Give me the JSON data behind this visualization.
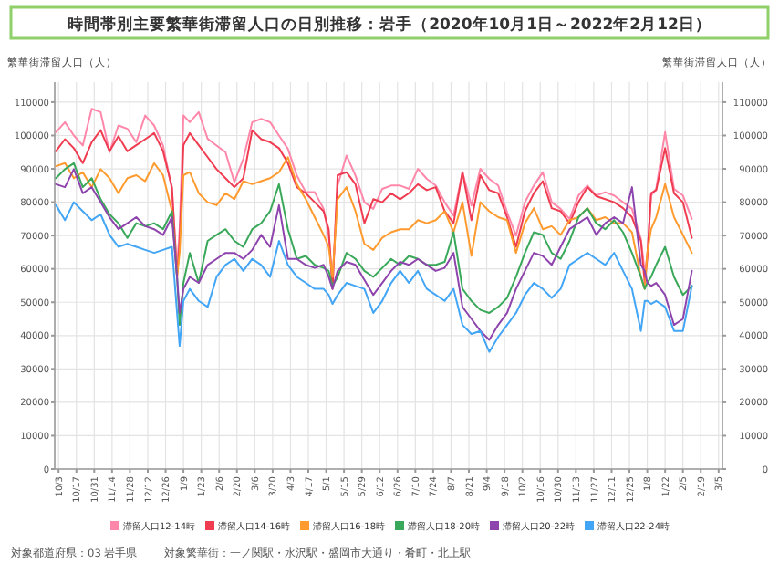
{
  "chart_data": {
    "type": "line",
    "title": "時間帯別主要繁華街滞留人口の日別推移：岩手（2020年10月1日～2022年2月12日）",
    "ylabel": "繁華街滞留人口（人）",
    "y2label": "繁華街滞留人口（人）",
    "x": [
      "2020-10-01",
      "2020-10-08",
      "2020-10-15",
      "2020-10-22",
      "2020-10-29",
      "2020-11-05",
      "2020-11-12",
      "2020-11-19",
      "2020-11-26",
      "2020-12-03",
      "2020-12-10",
      "2020-12-17",
      "2020-12-24",
      "2020-12-31",
      "2021-01-04",
      "2021-01-06",
      "2021-01-09",
      "2021-01-14",
      "2021-01-21",
      "2021-01-28",
      "2021-02-04",
      "2021-02-11",
      "2021-02-18",
      "2021-02-25",
      "2021-03-04",
      "2021-03-11",
      "2021-03-18",
      "2021-03-25",
      "2021-04-01",
      "2021-04-08",
      "2021-04-15",
      "2021-04-22",
      "2021-04-29",
      "2021-05-03",
      "2021-05-06",
      "2021-05-10",
      "2021-05-17",
      "2021-05-24",
      "2021-05-31",
      "2021-06-07",
      "2021-06-14",
      "2021-06-21",
      "2021-06-28",
      "2021-07-05",
      "2021-07-12",
      "2021-07-19",
      "2021-07-26",
      "2021-08-02",
      "2021-08-09",
      "2021-08-16",
      "2021-08-23",
      "2021-08-30",
      "2021-09-06",
      "2021-09-13",
      "2021-09-20",
      "2021-09-27",
      "2021-10-04",
      "2021-10-11",
      "2021-10-18",
      "2021-10-25",
      "2021-11-01",
      "2021-11-08",
      "2021-11-15",
      "2021-11-22",
      "2021-11-29",
      "2021-12-06",
      "2021-12-13",
      "2021-12-20",
      "2021-12-27",
      "2022-01-03",
      "2022-01-06",
      "2022-01-08",
      "2022-01-11",
      "2022-01-15",
      "2022-01-22",
      "2022-01-29",
      "2022-02-05",
      "2022-02-12"
    ],
    "series": [
      {
        "name": "滞留人口12-14時",
        "color": "#ff88aa",
        "values": [
          101000,
          104000,
          100000,
          97000,
          108000,
          107000,
          95000,
          103000,
          102000,
          98000,
          106000,
          103000,
          97000,
          84000,
          60000,
          72000,
          106000,
          104000,
          107000,
          99000,
          97000,
          95000,
          86000,
          93000,
          104000,
          105000,
          104000,
          100000,
          96000,
          88000,
          83000,
          83000,
          78000,
          70000,
          55000,
          85000,
          94000,
          88000,
          80000,
          78000,
          84000,
          85000,
          85000,
          84000,
          90000,
          87000,
          85000,
          80000,
          76000,
          89000,
          79000,
          90000,
          87000,
          85000,
          77000,
          70000,
          80000,
          85000,
          89000,
          80000,
          78000,
          75000,
          82000,
          85000,
          82000,
          83000,
          82000,
          80000,
          78000,
          69000,
          59000,
          64000,
          82000,
          84000,
          101000,
          84000,
          82000,
          75000
        ]
      },
      {
        "name": "滞留人口14-16時",
        "color": "#f03c50",
        "values": [
          95300,
          98900,
          96200,
          91700,
          98000,
          101600,
          95300,
          99800,
          95300,
          97100,
          98900,
          100700,
          95300,
          84500,
          57600,
          68400,
          97100,
          100700,
          97100,
          93500,
          89900,
          87200,
          84500,
          87200,
          101600,
          98900,
          98000,
          96200,
          91700,
          84500,
          82700,
          80000,
          77300,
          71900,
          54000,
          88100,
          89000,
          85400,
          73700,
          80900,
          80000,
          82700,
          80900,
          82700,
          85400,
          83600,
          84500,
          77300,
          73700,
          89000,
          74600,
          88100,
          83600,
          82700,
          75500,
          66600,
          77300,
          82700,
          86300,
          78200,
          77300,
          73700,
          80000,
          84500,
          81800,
          80900,
          80000,
          78200,
          75500,
          68400,
          55800,
          63000,
          82700,
          83600,
          96200,
          82700,
          80000,
          69300
        ]
      },
      {
        "name": "滞留人口16-18時",
        "color": "#ff9a2e",
        "values": [
          90800,
          91700,
          87200,
          89000,
          84500,
          89900,
          87200,
          82700,
          87200,
          88100,
          86300,
          91700,
          88100,
          77300,
          57600,
          64800,
          88100,
          89000,
          82700,
          80000,
          79100,
          82700,
          80900,
          86300,
          85400,
          86300,
          87200,
          89000,
          93500,
          85400,
          80900,
          75500,
          70200,
          66600,
          57600,
          80900,
          84500,
          77300,
          67500,
          65700,
          69300,
          71000,
          71900,
          71900,
          74600,
          73700,
          74600,
          77300,
          71000,
          80000,
          63900,
          80000,
          77300,
          75500,
          74600,
          64800,
          73700,
          78200,
          71900,
          72800,
          70200,
          74600,
          75500,
          78200,
          74600,
          75500,
          73700,
          73700,
          71000,
          57600,
          54000,
          64800,
          71900,
          75500,
          85400,
          75500,
          70200,
          64800
        ]
      },
      {
        "name": "滞留人口18-20時",
        "color": "#3aa85a",
        "values": [
          87200,
          89900,
          91700,
          84500,
          87200,
          80900,
          76400,
          73700,
          69300,
          73700,
          72800,
          73700,
          71900,
          77300,
          57600,
          43200,
          55800,
          64800,
          55800,
          68400,
          70200,
          71900,
          68400,
          66600,
          71900,
          73700,
          77300,
          85400,
          71900,
          63000,
          63900,
          61200,
          60300,
          59400,
          54900,
          57600,
          64800,
          63000,
          59400,
          57600,
          60300,
          63000,
          61200,
          63900,
          63000,
          61200,
          61200,
          62100,
          71000,
          54000,
          50400,
          47700,
          46800,
          48600,
          51300,
          57600,
          64800,
          71000,
          70200,
          64800,
          63000,
          68400,
          75500,
          78200,
          73700,
          71900,
          74600,
          71000,
          64800,
          57600,
          54000,
          55800,
          57600,
          61200,
          66600,
          57600,
          52200,
          54900
        ]
      },
      {
        "name": "滞留人口20-22時",
        "color": "#8e44ad",
        "values": [
          85400,
          84500,
          89900,
          82700,
          84500,
          80000,
          75500,
          71900,
          73700,
          75500,
          72800,
          71900,
          70200,
          75500,
          57600,
          46800,
          54000,
          57600,
          55800,
          61200,
          63000,
          64800,
          64800,
          63000,
          65700,
          70200,
          66600,
          79100,
          63000,
          63000,
          61200,
          60300,
          61200,
          57600,
          54000,
          59400,
          62100,
          61200,
          56700,
          52200,
          55800,
          59400,
          62100,
          61200,
          63000,
          61200,
          59400,
          60300,
          64800,
          48600,
          45000,
          41400,
          38700,
          43200,
          46800,
          54000,
          59400,
          64800,
          63900,
          61200,
          66600,
          71900,
          73700,
          75500,
          70200,
          73700,
          75500,
          73700,
          84500,
          61200,
          59400,
          55800,
          54900,
          55800,
          52200,
          43200,
          45000,
          59400
        ]
      },
      {
        "name": "滞留人口22-24時",
        "color": "#42a5f5",
        "values": [
          79100,
          74600,
          80000,
          77300,
          74600,
          76400,
          70200,
          66600,
          67500,
          66600,
          65700,
          64800,
          65700,
          66600,
          46800,
          36900,
          50400,
          54000,
          50400,
          48600,
          57600,
          61200,
          63000,
          59400,
          63000,
          61200,
          57600,
          68400,
          61200,
          57600,
          55800,
          54000,
          54000,
          52200,
          49500,
          52200,
          55800,
          54900,
          54000,
          46800,
          50400,
          55800,
          59400,
          55800,
          59400,
          54000,
          52200,
          50400,
          54000,
          43200,
          40500,
          41400,
          35100,
          39600,
          43200,
          46800,
          52200,
          55800,
          54000,
          51300,
          54000,
          61200,
          63000,
          64800,
          63000,
          61200,
          64800,
          59400,
          54000,
          41400,
          50400,
          50400,
          49500,
          50400,
          48600,
          41400,
          41400,
          54900
        ]
      }
    ],
    "xlim": [
      "2020-09-30",
      "2022-03-08"
    ],
    "xticks": [
      {
        "value": "2020-10-03",
        "label": "10/3"
      },
      {
        "value": "2020-10-17",
        "label": "10/17"
      },
      {
        "value": "2020-10-31",
        "label": "10/31"
      },
      {
        "value": "2020-11-14",
        "label": "11/14"
      },
      {
        "value": "2020-11-28",
        "label": "11/28"
      },
      {
        "value": "2020-12-12",
        "label": "12/12"
      },
      {
        "value": "2020-12-26",
        "label": "12/26"
      },
      {
        "value": "2021-01-09",
        "label": "1/9"
      },
      {
        "value": "2021-01-23",
        "label": "1/23"
      },
      {
        "value": "2021-02-06",
        "label": "2/6"
      },
      {
        "value": "2021-02-20",
        "label": "2/20"
      },
      {
        "value": "2021-03-06",
        "label": "3/6"
      },
      {
        "value": "2021-03-20",
        "label": "3/20"
      },
      {
        "value": "2021-04-03",
        "label": "4/3"
      },
      {
        "value": "2021-04-17",
        "label": "4/17"
      },
      {
        "value": "2021-05-01",
        "label": "5/1"
      },
      {
        "value": "2021-05-15",
        "label": "5/15"
      },
      {
        "value": "2021-05-29",
        "label": "5/29"
      },
      {
        "value": "2021-06-12",
        "label": "6/12"
      },
      {
        "value": "2021-06-26",
        "label": "6/26"
      },
      {
        "value": "2021-07-10",
        "label": "7/10"
      },
      {
        "value": "2021-07-24",
        "label": "7/24"
      },
      {
        "value": "2021-08-07",
        "label": "8/7"
      },
      {
        "value": "2021-08-21",
        "label": "8/21"
      },
      {
        "value": "2021-09-04",
        "label": "9/4"
      },
      {
        "value": "2021-09-18",
        "label": "9/18"
      },
      {
        "value": "2021-10-02",
        "label": "10/2"
      },
      {
        "value": "2021-10-16",
        "label": "10/16"
      },
      {
        "value": "2021-10-30",
        "label": "10/30"
      },
      {
        "value": "2021-11-13",
        "label": "11/13"
      },
      {
        "value": "2021-11-27",
        "label": "11/27"
      },
      {
        "value": "2021-12-11",
        "label": "12/11"
      },
      {
        "value": "2021-12-25",
        "label": "12/25"
      },
      {
        "value": "2022-01-08",
        "label": "1/8"
      },
      {
        "value": "2022-01-22",
        "label": "1/22"
      },
      {
        "value": "2022-02-05",
        "label": "2/5"
      },
      {
        "value": "2022-02-19",
        "label": "2/19"
      },
      {
        "value": "2022-03-05",
        "label": "3/5"
      }
    ],
    "ylim": [
      0,
      116000
    ],
    "yticks": [
      0,
      10000,
      20000,
      30000,
      40000,
      50000,
      60000,
      70000,
      80000,
      90000,
      100000,
      110000
    ],
    "y2lim": [
      0,
      116000
    ],
    "y2ticks": [
      0,
      10000,
      20000,
      30000,
      40000,
      50000,
      60000,
      70000,
      80000,
      90000,
      100000,
      110000
    ],
    "grid": true,
    "legend": "bottom",
    "marker": "none",
    "line_style": "solid",
    "annotations": [
      "対象都道府県：03 岩手県",
      "対象繁華街：一ノ関駅・水沢駅・盛岡市大通り・肴町・北上駅"
    ]
  }
}
